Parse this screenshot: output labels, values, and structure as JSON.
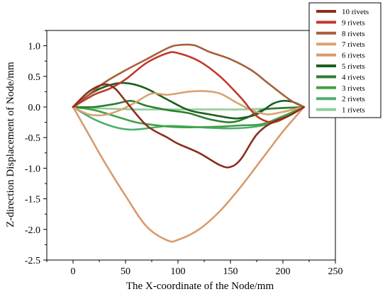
{
  "chart_data": {
    "type": "line",
    "xlabel": "The X-coordinate of the Node/mm",
    "ylabel": "Z-direction Displacement of Node/mm",
    "xlim": [
      -25,
      250
    ],
    "ylim": [
      -2.5,
      1.25
    ],
    "xticks": [
      0,
      50,
      100,
      150,
      200,
      250
    ],
    "xtick_labels": [
      "0",
      "50",
      "100",
      "150",
      "200",
      "250"
    ],
    "yticks": [
      -2.5,
      -2.0,
      -1.5,
      -1.0,
      -0.5,
      0.0,
      0.5,
      1.0
    ],
    "ytick_labels": [
      "-2.5",
      "-2.0",
      "-1.5",
      "-1.0",
      "-0.5",
      "0.0",
      "0.5",
      "1.0"
    ],
    "grid": false,
    "legend_position": "top-right",
    "series": [
      {
        "name": "10 rivets",
        "color": "#8B2E1A",
        "x": [
          0,
          15,
          30,
          40,
          50,
          70,
          90,
          100,
          120,
          140,
          150,
          160,
          175,
          190,
          205,
          220
        ],
        "y": [
          0,
          0.25,
          0.37,
          0.3,
          0.1,
          -0.3,
          -0.5,
          -0.6,
          -0.75,
          -0.95,
          -0.98,
          -0.85,
          -0.45,
          -0.25,
          -0.15,
          0
        ]
      },
      {
        "name": "9 rivets",
        "color": "#C0392B",
        "x": [
          0,
          20,
          35,
          50,
          70,
          90,
          100,
          120,
          140,
          160,
          175,
          190,
          205,
          220
        ],
        "y": [
          0,
          0.2,
          0.3,
          0.45,
          0.72,
          0.88,
          0.88,
          0.75,
          0.5,
          0.15,
          -0.15,
          -0.25,
          -0.15,
          0
        ]
      },
      {
        "name": "8 rivets",
        "color": "#A6603A",
        "x": [
          0,
          15,
          30,
          50,
          70,
          90,
          100,
          115,
          130,
          150,
          170,
          185,
          200,
          210,
          220
        ],
        "y": [
          0,
          0.2,
          0.4,
          0.6,
          0.78,
          0.96,
          1.01,
          1.01,
          0.9,
          0.78,
          0.6,
          0.4,
          0.2,
          0.08,
          0
        ]
      },
      {
        "name": "7 rivets",
        "color": "#D9A273",
        "x": [
          0,
          15,
          30,
          45,
          60,
          75,
          90,
          110,
          125,
          140,
          155,
          170,
          185,
          200,
          220
        ],
        "y": [
          0,
          -0.12,
          -0.13,
          -0.05,
          0.08,
          0.22,
          0.2,
          0.25,
          0.26,
          0.22,
          0.08,
          -0.05,
          -0.12,
          -0.08,
          0
        ]
      },
      {
        "name": "6 rivets",
        "color": "#D99A6C",
        "x": [
          0,
          15,
          30,
          50,
          70,
          90,
          100,
          120,
          140,
          160,
          180,
          200,
          210,
          220
        ],
        "y": [
          0,
          -0.45,
          -0.9,
          -1.45,
          -1.95,
          -2.18,
          -2.17,
          -2.0,
          -1.7,
          -1.3,
          -0.85,
          -0.4,
          -0.2,
          0
        ]
      },
      {
        "name": "5 rivets",
        "color": "#1B5E20",
        "x": [
          0,
          20,
          40,
          55,
          70,
          90,
          110,
          130,
          150,
          160,
          175,
          190,
          200,
          210,
          220
        ],
        "y": [
          0,
          0.25,
          0.38,
          0.38,
          0.3,
          0.12,
          -0.05,
          -0.12,
          -0.18,
          -0.18,
          -0.12,
          0.05,
          0.1,
          0.08,
          0
        ]
      },
      {
        "name": "4 rivets",
        "color": "#2E7D32",
        "x": [
          0,
          20,
          40,
          55,
          70,
          90,
          110,
          130,
          150,
          165,
          180,
          195,
          210,
          220
        ],
        "y": [
          0,
          0,
          0.05,
          0.1,
          0.02,
          -0.05,
          -0.1,
          -0.2,
          -0.25,
          -0.18,
          -0.05,
          -0.02,
          -0.01,
          0
        ]
      },
      {
        "name": "3 rivets",
        "color": "#43A047",
        "x": [
          0,
          20,
          40,
          60,
          80,
          100,
          120,
          140,
          160,
          180,
          200,
          220
        ],
        "y": [
          0,
          -0.05,
          -0.15,
          -0.25,
          -0.3,
          -0.33,
          -0.33,
          -0.32,
          -0.3,
          -0.28,
          -0.15,
          0
        ]
      },
      {
        "name": "2 rivets",
        "color": "#4CAF70",
        "x": [
          0,
          20,
          40,
          55,
          70,
          90,
          110,
          130,
          150,
          170,
          190,
          205,
          220
        ],
        "y": [
          0,
          -0.2,
          -0.33,
          -0.37,
          -0.35,
          -0.31,
          -0.32,
          -0.34,
          -0.35,
          -0.33,
          -0.26,
          -0.12,
          0
        ]
      },
      {
        "name": "1 rivets",
        "color": "#8FCF97",
        "x": [
          0,
          20,
          40,
          60,
          80,
          100,
          120,
          140,
          160,
          180,
          200,
          220
        ],
        "y": [
          0,
          -0.02,
          -0.03,
          -0.04,
          -0.04,
          -0.04,
          -0.04,
          -0.04,
          -0.04,
          -0.03,
          -0.02,
          0
        ]
      }
    ]
  }
}
